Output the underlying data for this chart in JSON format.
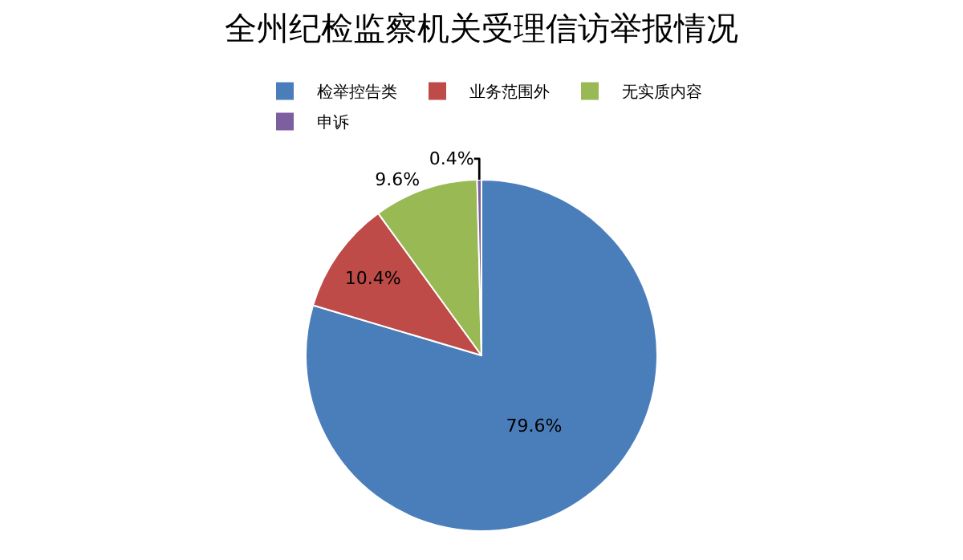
{
  "chart_data": {
    "type": "pie",
    "title": "全州纪检监察机关受理信访举报情况",
    "categories": [
      "检举控告类",
      "业务范围外",
      "无实质内容",
      "申诉"
    ],
    "values": [
      79.6,
      10.4,
      9.6,
      0.4
    ],
    "value_labels": [
      "79.6%",
      "10.4%",
      "9.6%",
      "0.4%"
    ],
    "colors": [
      "#4a7ebb",
      "#be4b48",
      "#98b954",
      "#7d5fa0"
    ],
    "legend": "top"
  }
}
